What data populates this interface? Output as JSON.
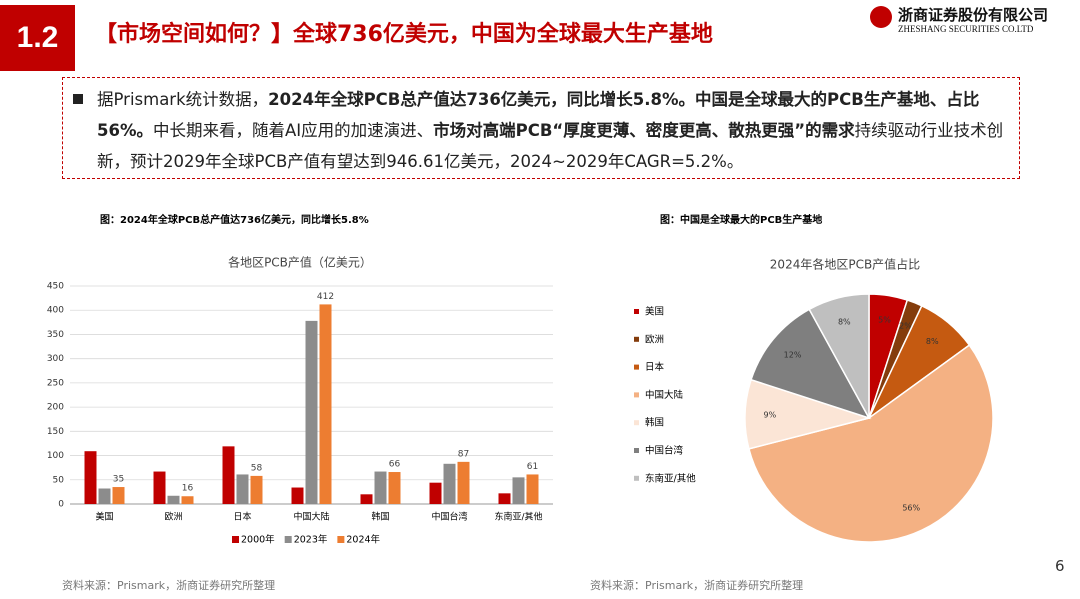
{
  "header": {
    "section": "1.2",
    "title": "【市场空间如何？】全球736亿美元，中国为全球最大生产基地"
  },
  "logo": {
    "name": "浙商证券股份有限公司",
    "en": "ZHESHANG SECURITIES CO.LTD"
  },
  "summary": {
    "segments": [
      {
        "text": "据Prismark统计数据，",
        "bold": false
      },
      {
        "text": "2024年全球PCB总产值达736亿美元，同比增长5.8%。中国是全球最大的PCB生产基地、占比56%。",
        "bold": true
      },
      {
        "text": "中长期来看，随着AI应用的加速演进、",
        "bold": false
      },
      {
        "text": "市场对高端PCB“厚度更薄、密度更高、散热更强”的需求",
        "bold": true
      },
      {
        "text": "持续驱动行业技术创新，预计2029年全球PCB产值有望达到946.61亿美元，2024~2029年CAGR=5.2%。",
        "bold": false
      }
    ]
  },
  "page_number": "6",
  "chart_data": [
    {
      "type": "bar",
      "caption": "图：2024年全球PCB总产值达736亿美元，同比增长5.8%",
      "title": "各地区PCB产值（亿美元）",
      "categories": [
        "美国",
        "欧洲",
        "日本",
        "中国大陆",
        "韩国",
        "中国台湾",
        "东南亚/其他"
      ],
      "series": [
        {
          "name": "2000年",
          "color": "#c00000",
          "values": [
            109,
            67,
            119,
            34,
            20,
            44,
            22
          ],
          "show_labels": false
        },
        {
          "name": "2023年",
          "color": "#8c8c8c",
          "values": [
            32,
            17,
            61,
            378,
            67,
            83,
            55
          ],
          "show_labels": false
        },
        {
          "name": "2024年",
          "color": "#ed7d31",
          "values": [
            35,
            16,
            58,
            412,
            66,
            87,
            61
          ],
          "show_labels": true
        }
      ],
      "ylim": [
        0,
        450
      ],
      "yticks": [
        0,
        50,
        100,
        150,
        200,
        250,
        300,
        350,
        400,
        450
      ],
      "grid": true,
      "legend": "bottom",
      "source": "资料来源：Prismark，浙商证券研究所整理"
    },
    {
      "type": "pie",
      "caption": "图：中国是全球最大的PCB生产基地",
      "title": "2024年各地区PCB产值占比",
      "categories": [
        "美国",
        "欧洲",
        "日本",
        "中国大陆",
        "韩国",
        "中国台湾",
        "东南亚/其他"
      ],
      "values": [
        5,
        2,
        8,
        56,
        9,
        12,
        8
      ],
      "value_labels": [
        "5%",
        "2%",
        "8%",
        "56%",
        "9%",
        "12%",
        "8%"
      ],
      "colors": [
        "#c00000",
        "#843c0c",
        "#c55a11",
        "#f4b183",
        "#fbe5d6",
        "#7f7f7f",
        "#bfbfbf"
      ],
      "legend": "left",
      "source": "资料来源：Prismark，浙商证券研究所整理"
    }
  ]
}
